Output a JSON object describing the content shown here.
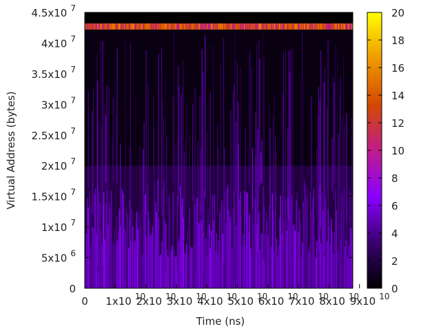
{
  "chart_data": {
    "type": "heatmap",
    "xlabel": "Time (ns)",
    "ylabel": "Virtual Address (bytes)",
    "xlim": [
      0,
      90000000000
    ],
    "ylim": [
      0,
      45000000
    ],
    "x_ticks": [
      {
        "base": "0",
        "exp": ""
      },
      {
        "base": "1x10",
        "exp": "10"
      },
      {
        "base": "2x10",
        "exp": "10"
      },
      {
        "base": "3x10",
        "exp": "10"
      },
      {
        "base": "4x10",
        "exp": "10"
      },
      {
        "base": "5x10",
        "exp": "10"
      },
      {
        "base": "6x10",
        "exp": "10"
      },
      {
        "base": "7x10",
        "exp": "10"
      },
      {
        "base": "8x10",
        "exp": "10"
      },
      {
        "base": "9x10",
        "exp": "10"
      }
    ],
    "y_ticks": [
      {
        "base": "0",
        "exp": ""
      },
      {
        "base": "5x10",
        "exp": "6"
      },
      {
        "base": "1x10",
        "exp": "7"
      },
      {
        "base": "1.5x10",
        "exp": "7"
      },
      {
        "base": "2x10",
        "exp": "7"
      },
      {
        "base": "2.5x10",
        "exp": "7"
      },
      {
        "base": "3x10",
        "exp": "7"
      },
      {
        "base": "3.5x10",
        "exp": "7"
      },
      {
        "base": "4x10",
        "exp": "7"
      },
      {
        "base": "4.5x10",
        "exp": "7"
      }
    ],
    "colorbar": {
      "range": [
        0,
        20
      ],
      "ticks": [
        "0",
        "2",
        "4",
        "6",
        "8",
        "10",
        "12",
        "14",
        "16",
        "18",
        "20"
      ],
      "colormap": [
        "#000000",
        "#3a0070",
        "#8a00ff",
        "#c01c8a",
        "#d24a00",
        "#f09a00",
        "#ffff00"
      ]
    },
    "bands": [
      {
        "y_start": 42200000,
        "y_end": 43200000,
        "level": 12
      },
      {
        "y_start": 0,
        "y_end": 20000000,
        "level": 5
      },
      {
        "y_start": 20000000,
        "y_end": 42000000,
        "level": 1
      }
    ],
    "grid": false
  }
}
